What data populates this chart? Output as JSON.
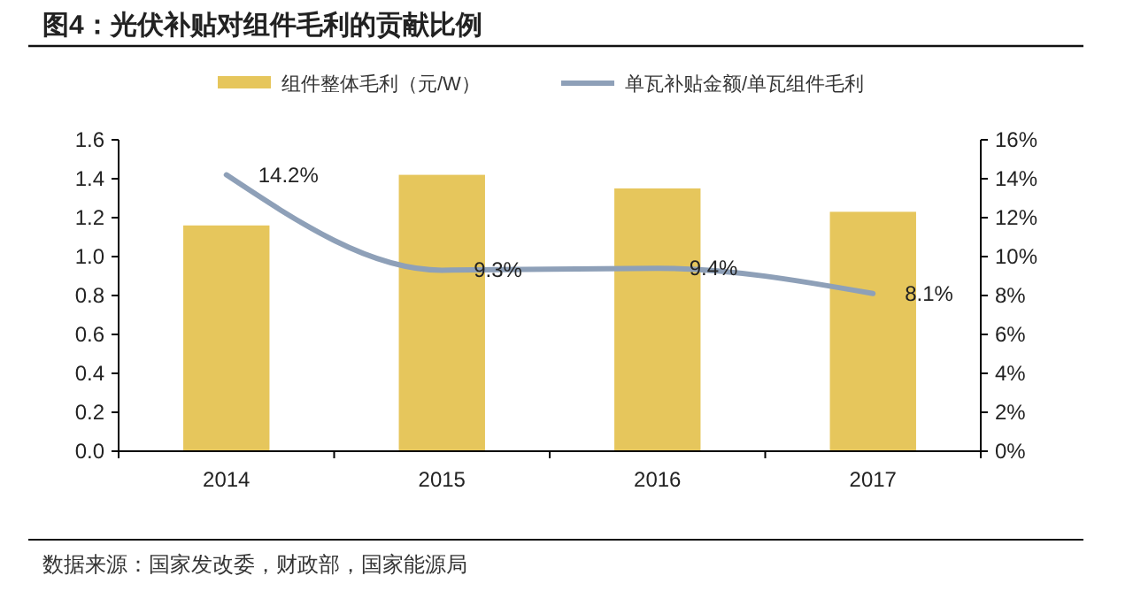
{
  "chart_data": {
    "type": "bar",
    "title": "图4：光伏补贴对组件毛利的贡献比例",
    "categories": [
      "2014",
      "2015",
      "2016",
      "2017"
    ],
    "series": [
      {
        "name": "组件整体毛利（元/W）",
        "color": "#e6c65c",
        "values": [
          1.16,
          1.42,
          1.35,
          1.23
        ]
      },
      {
        "name": "单瓦补贴金额/单瓦组件毛利",
        "type": "line",
        "axis": "y2",
        "color": "#8ea0b8",
        "values": [
          14.2,
          9.3,
          9.4,
          8.1
        ],
        "value_labels": [
          "14.2%",
          "9.3%",
          "9.4%",
          "8.1%"
        ]
      }
    ],
    "ylim": [
      0,
      1.6
    ],
    "yticks": [
      {
        "value": 0,
        "label": "0.0"
      },
      {
        "value": 0.2,
        "label": "0.2"
      },
      {
        "value": 0.4,
        "label": "0.4"
      },
      {
        "value": 0.6,
        "label": "0.6"
      },
      {
        "value": 0.8,
        "label": "0.8"
      },
      {
        "value": 1,
        "label": "1.0"
      },
      {
        "value": 1.2,
        "label": "1.2"
      },
      {
        "value": 1.4,
        "label": "1.4"
      },
      {
        "value": 1.6,
        "label": "1.6"
      }
    ],
    "y2lim": [
      0,
      16
    ],
    "y2ticks": [
      {
        "value": 0,
        "label": "0%"
      },
      {
        "value": 2,
        "label": "2%"
      },
      {
        "value": 4,
        "label": "4%"
      },
      {
        "value": 6,
        "label": "6%"
      },
      {
        "value": 8,
        "label": "8%"
      },
      {
        "value": 10,
        "label": "10%"
      },
      {
        "value": 12,
        "label": "12%"
      },
      {
        "value": 14,
        "label": "14%"
      },
      {
        "value": 16,
        "label": "16%"
      }
    ],
    "legend": "top",
    "grid": false,
    "annotations": [
      "数据来源：国家发改委，财政部，国家能源局"
    ]
  }
}
